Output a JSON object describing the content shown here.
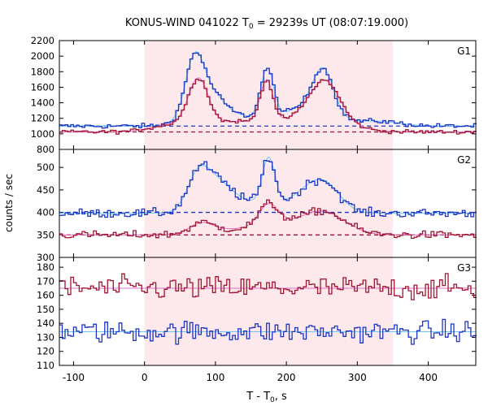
{
  "chart_data": {
    "type": "line",
    "title_main": "KONUS-WIND 041022 T",
    "title_sub": "0",
    "title_rest": " = 29239s UT (08:07:19.000)",
    "xlabel_main": "T - T",
    "xlabel_sub": "0",
    "xlabel_rest": ", s",
    "ylabel": "counts / sec",
    "xlim": [
      -120,
      467
    ],
    "xticks": [
      -100,
      0,
      100,
      200,
      300,
      400
    ],
    "shaded_interval": [
      0,
      350
    ],
    "colors": {
      "blue": "#1a35c8",
      "cyan": "#6ec8f5",
      "red": "#a01530",
      "pink": "#e070c8",
      "shade": "#fde8ec",
      "bg_blue": "#1a35c8",
      "bg_red": "#a01530"
    },
    "panels": [
      {
        "label": "G1",
        "ylim": [
          800,
          2200
        ],
        "yticks": [
          800,
          1000,
          1200,
          1400,
          1600,
          1800,
          2000,
          2200
        ],
        "background_levels": [
          {
            "series": "blue",
            "value": 1100,
            "style": "dashed"
          },
          {
            "series": "red",
            "value": 1025,
            "style": "dashed"
          }
        ],
        "series": [
          {
            "color": "blue",
            "smooth_color": "cyan",
            "base": 1100,
            "noise": 22,
            "peaks": [
              [
                70,
                12,
                560
              ],
              [
                85,
                22,
                420
              ],
              [
                173,
                9,
                630
              ],
              [
                252,
                14,
                520
              ],
              [
                235,
                32,
                260
              ],
              [
                130,
                45,
                120
              ],
              [
                330,
                30,
                60
              ]
            ]
          },
          {
            "color": "red",
            "smooth_color": "pink",
            "base": 1025,
            "noise": 18,
            "peaks": [
              [
                76,
                14,
                600
              ],
              [
                172,
                9,
                540
              ],
              [
                255,
                20,
                450
              ],
              [
                240,
                40,
                230
              ],
              [
                130,
                40,
                130
              ],
              [
                40,
                30,
                90
              ]
            ]
          }
        ]
      },
      {
        "label": "G2",
        "ylim": [
          300,
          540
        ],
        "yticks": [
          300,
          350,
          400,
          450,
          500
        ],
        "background_levels": [
          {
            "series": "blue",
            "value": 400,
            "style": "dashed"
          },
          {
            "series": "red",
            "value": 350,
            "style": "dashed"
          }
        ],
        "series": [
          {
            "color": "blue",
            "smooth_color": "cyan",
            "base": 398,
            "noise": 7,
            "peaks": [
              [
                75,
                15,
                68
              ],
              [
                100,
                20,
                48
              ],
              [
                175,
                9,
                105
              ],
              [
                255,
                22,
                55
              ],
              [
                225,
                25,
                35
              ],
              [
                130,
                40,
                28
              ]
            ]
          },
          {
            "color": "red",
            "smooth_color": "pink",
            "base": 350,
            "noise": 6,
            "peaks": [
              [
                80,
                16,
                22
              ],
              [
                175,
                14,
                50
              ],
              [
                255,
                30,
                40
              ],
              [
                215,
                40,
                20
              ],
              [
                130,
                40,
                12
              ]
            ]
          }
        ]
      },
      {
        "label": "G3",
        "ylim": [
          110,
          187
        ],
        "yticks": [
          110,
          120,
          130,
          140,
          150,
          160,
          170,
          180
        ],
        "background_levels": [
          {
            "series": "red",
            "value": 165,
            "style": "solid"
          },
          {
            "series": "blue",
            "value": 134,
            "style": "solid"
          }
        ],
        "series": [
          {
            "color": "red",
            "smooth_color": "pink",
            "base": 165,
            "noise": 6,
            "peaks": []
          },
          {
            "color": "blue",
            "smooth_color": "cyan",
            "base": 134,
            "noise": 5.5,
            "peaks": []
          }
        ]
      }
    ]
  }
}
